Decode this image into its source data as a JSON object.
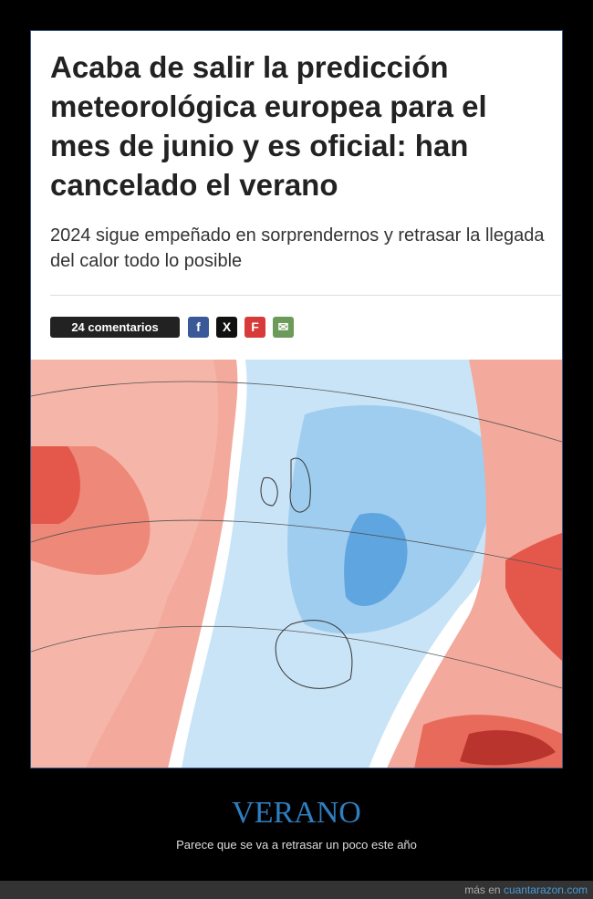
{
  "header": {
    "title": "Acaba de salir la predicción meteorológica europea para el mes de junio y es oficial: han cancelado el verano",
    "subtitle": "2024 sigue empeñado en sorprendernos y retrasar la llegada del calor todo lo posible"
  },
  "share": {
    "comments": "24 comentarios"
  },
  "caption": {
    "title": "VERANO",
    "text": "Parece que se va a retrasar un poco este año"
  },
  "footer": {
    "prefix": "más en",
    "link": "cuantarazon.com"
  }
}
